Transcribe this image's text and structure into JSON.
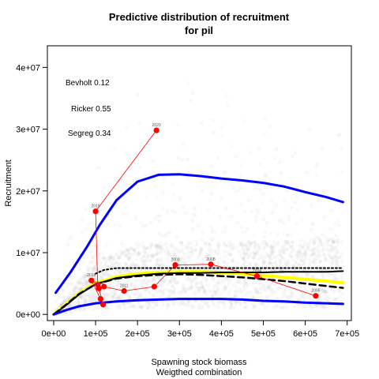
{
  "chart_data": {
    "type": "scatter",
    "title_line1": "Predictive distribution of recruitment",
    "title_line2": "for pil",
    "xlabel_line1": "Spawning stock biomass",
    "xlabel_line2": "Weigthed combination",
    "ylabel": "Recruitment",
    "xlim": [
      -15000,
      710000
    ],
    "ylim": [
      -1000000,
      43500000
    ],
    "x_ticks": [
      0,
      100000,
      200000,
      300000,
      400000,
      500000,
      600000,
      700000
    ],
    "x_tick_labels": [
      "0e+00",
      "1e+05",
      "2e+05",
      "3e+05",
      "4e+05",
      "5e+05",
      "6e+05",
      "7e+05"
    ],
    "y_ticks": [
      0,
      10000000,
      20000000,
      30000000,
      40000000
    ],
    "y_tick_labels": [
      "0e+00",
      "1e+07",
      "2e+07",
      "3e+07",
      "4e+07"
    ],
    "annotations": [
      {
        "label": "Bevholt 0.12"
      },
      {
        "label": "Ricker 0.55"
      },
      {
        "label": "Segreg 0.34"
      }
    ],
    "colors": {
      "observed": "#ff0000",
      "upper_band": "#0000ff",
      "lower_band": "#0000ff",
      "median": "#000000",
      "deterministic": "#ffff00",
      "cloud": "#9a9a9a"
    },
    "observed_points": [
      {
        "ssb": 245000,
        "rec": 29800000,
        "year": "2020"
      },
      {
        "ssb": 100000,
        "rec": 16700000,
        "year": "2019"
      },
      {
        "ssb": 105000,
        "rec": 4800000,
        "year": ""
      },
      {
        "ssb": 90000,
        "rec": 5500000,
        "year": "2016"
      },
      {
        "ssb": 112000,
        "rec": 2500000,
        "year": ""
      },
      {
        "ssb": 118000,
        "rec": 1600000,
        "year": ""
      },
      {
        "ssb": 108000,
        "rec": 4200000,
        "year": "2014"
      },
      {
        "ssb": 120000,
        "rec": 4500000,
        "year": ""
      },
      {
        "ssb": 168000,
        "rec": 3800000,
        "year": "2011"
      },
      {
        "ssb": 240000,
        "rec": 4500000,
        "year": ""
      },
      {
        "ssb": 290000,
        "rec": 8000000,
        "year": "2003"
      },
      {
        "ssb": 375000,
        "rec": 8100000,
        "year": "2008"
      },
      {
        "ssb": 485000,
        "rec": 6200000,
        "year": "2004"
      },
      {
        "ssb": 625000,
        "rec": 3000000,
        "year": "2005"
      }
    ],
    "upper_band": {
      "ssb": [
        5000,
        40000,
        80000,
        110000,
        150000,
        200000,
        250000,
        300000,
        350000,
        400000,
        450000,
        500000,
        550000,
        600000,
        650000,
        690000
      ],
      "rec": [
        3500000,
        6800000,
        11000000,
        14500000,
        18500000,
        21500000,
        22600000,
        22700000,
        22400000,
        22000000,
        21700000,
        21300000,
        20700000,
        19800000,
        19000000,
        18200000
      ]
    },
    "median_line": {
      "ssb": [
        0,
        30000,
        60000,
        100000,
        150000,
        200000,
        250000,
        300000,
        350000,
        400000,
        450000,
        500000,
        550000,
        600000,
        650000,
        690000
      ],
      "rec": [
        0,
        1500000,
        3200000,
        4900000,
        5900000,
        6300000,
        6600000,
        6700000,
        6700000,
        6800000,
        6800000,
        6800000,
        6900000,
        6900000,
        6900000,
        7000000
      ]
    },
    "deterministic_line": {
      "ssb": [
        0,
        30000,
        60000,
        100000,
        150000,
        200000,
        250000,
        300000,
        350000,
        400000,
        450000,
        500000,
        550000,
        600000,
        650000,
        690000
      ],
      "rec": [
        0,
        1700000,
        3400000,
        5100000,
        6100000,
        6600000,
        6800000,
        6900000,
        6900000,
        6800000,
        6600000,
        6300000,
        6000000,
        5700000,
        5400000,
        5100000
      ]
    },
    "dashed_line": {
      "ssb": [
        0,
        30000,
        60000,
        100000,
        150000,
        200000,
        250000,
        300000,
        350000,
        400000,
        450000,
        500000,
        550000,
        600000,
        650000,
        690000
      ],
      "rec": [
        0,
        1600000,
        3300000,
        4900000,
        5800000,
        6200000,
        6400000,
        6500000,
        6400000,
        6200000,
        6000000,
        5700000,
        5400000,
        5000000,
        4600000,
        4300000
      ]
    },
    "dotted_line": {
      "ssb": [
        100000,
        120000,
        150000,
        200000,
        250000,
        300000,
        400000,
        500000,
        600000,
        690000
      ],
      "rec": [
        6600000,
        7200000,
        7500000,
        7500000,
        7500000,
        7500000,
        7500000,
        7500000,
        7500000,
        7500000
      ]
    },
    "lower_band": {
      "ssb": [
        0,
        30000,
        60000,
        100000,
        150000,
        200000,
        250000,
        300000,
        350000,
        400000,
        450000,
        500000,
        550000,
        600000,
        650000,
        690000
      ],
      "rec": [
        0,
        700000,
        1300000,
        1800000,
        2100000,
        2300000,
        2400000,
        2500000,
        2500000,
        2500000,
        2400000,
        2200000,
        2100000,
        1900000,
        1800000,
        1700000
      ]
    }
  }
}
